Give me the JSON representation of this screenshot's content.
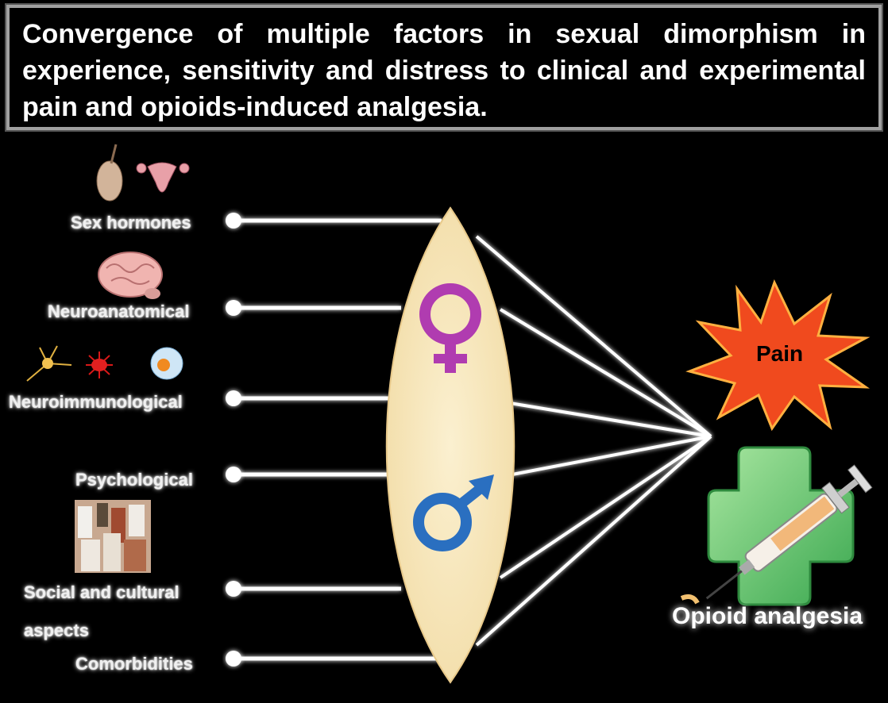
{
  "title": "Convergence of multiple factors in sexual dimorphism in experience, sensitivity and distress to clinical and experimental pain and opioids-induced analgesia.",
  "factors": [
    {
      "label": "Sex hormones",
      "icon": "sex-organs-icon"
    },
    {
      "label": "Neuroanatomical",
      "icon": "brain-icon"
    },
    {
      "label": "Neuroimmunological",
      "icon": "immune-cells-icon"
    },
    {
      "label": "Psychological",
      "icon": ""
    },
    {
      "label": "Social and cultural",
      "label_line2": "aspects",
      "icon": "social-crowd-icon"
    },
    {
      "label": "Comorbidities",
      "icon": ""
    }
  ],
  "lens": {
    "female_symbol": "♀",
    "male_symbol": "♂",
    "colors": {
      "lens": "#f7e7bd",
      "female": "#b03cb0",
      "male": "#2a6fc0"
    }
  },
  "outcomes": {
    "pain_label": "Pain",
    "analgesia_label": "Opioid analgesia",
    "colors": {
      "pain_star": "#f04a1e",
      "cross": "#5fc46a"
    }
  }
}
